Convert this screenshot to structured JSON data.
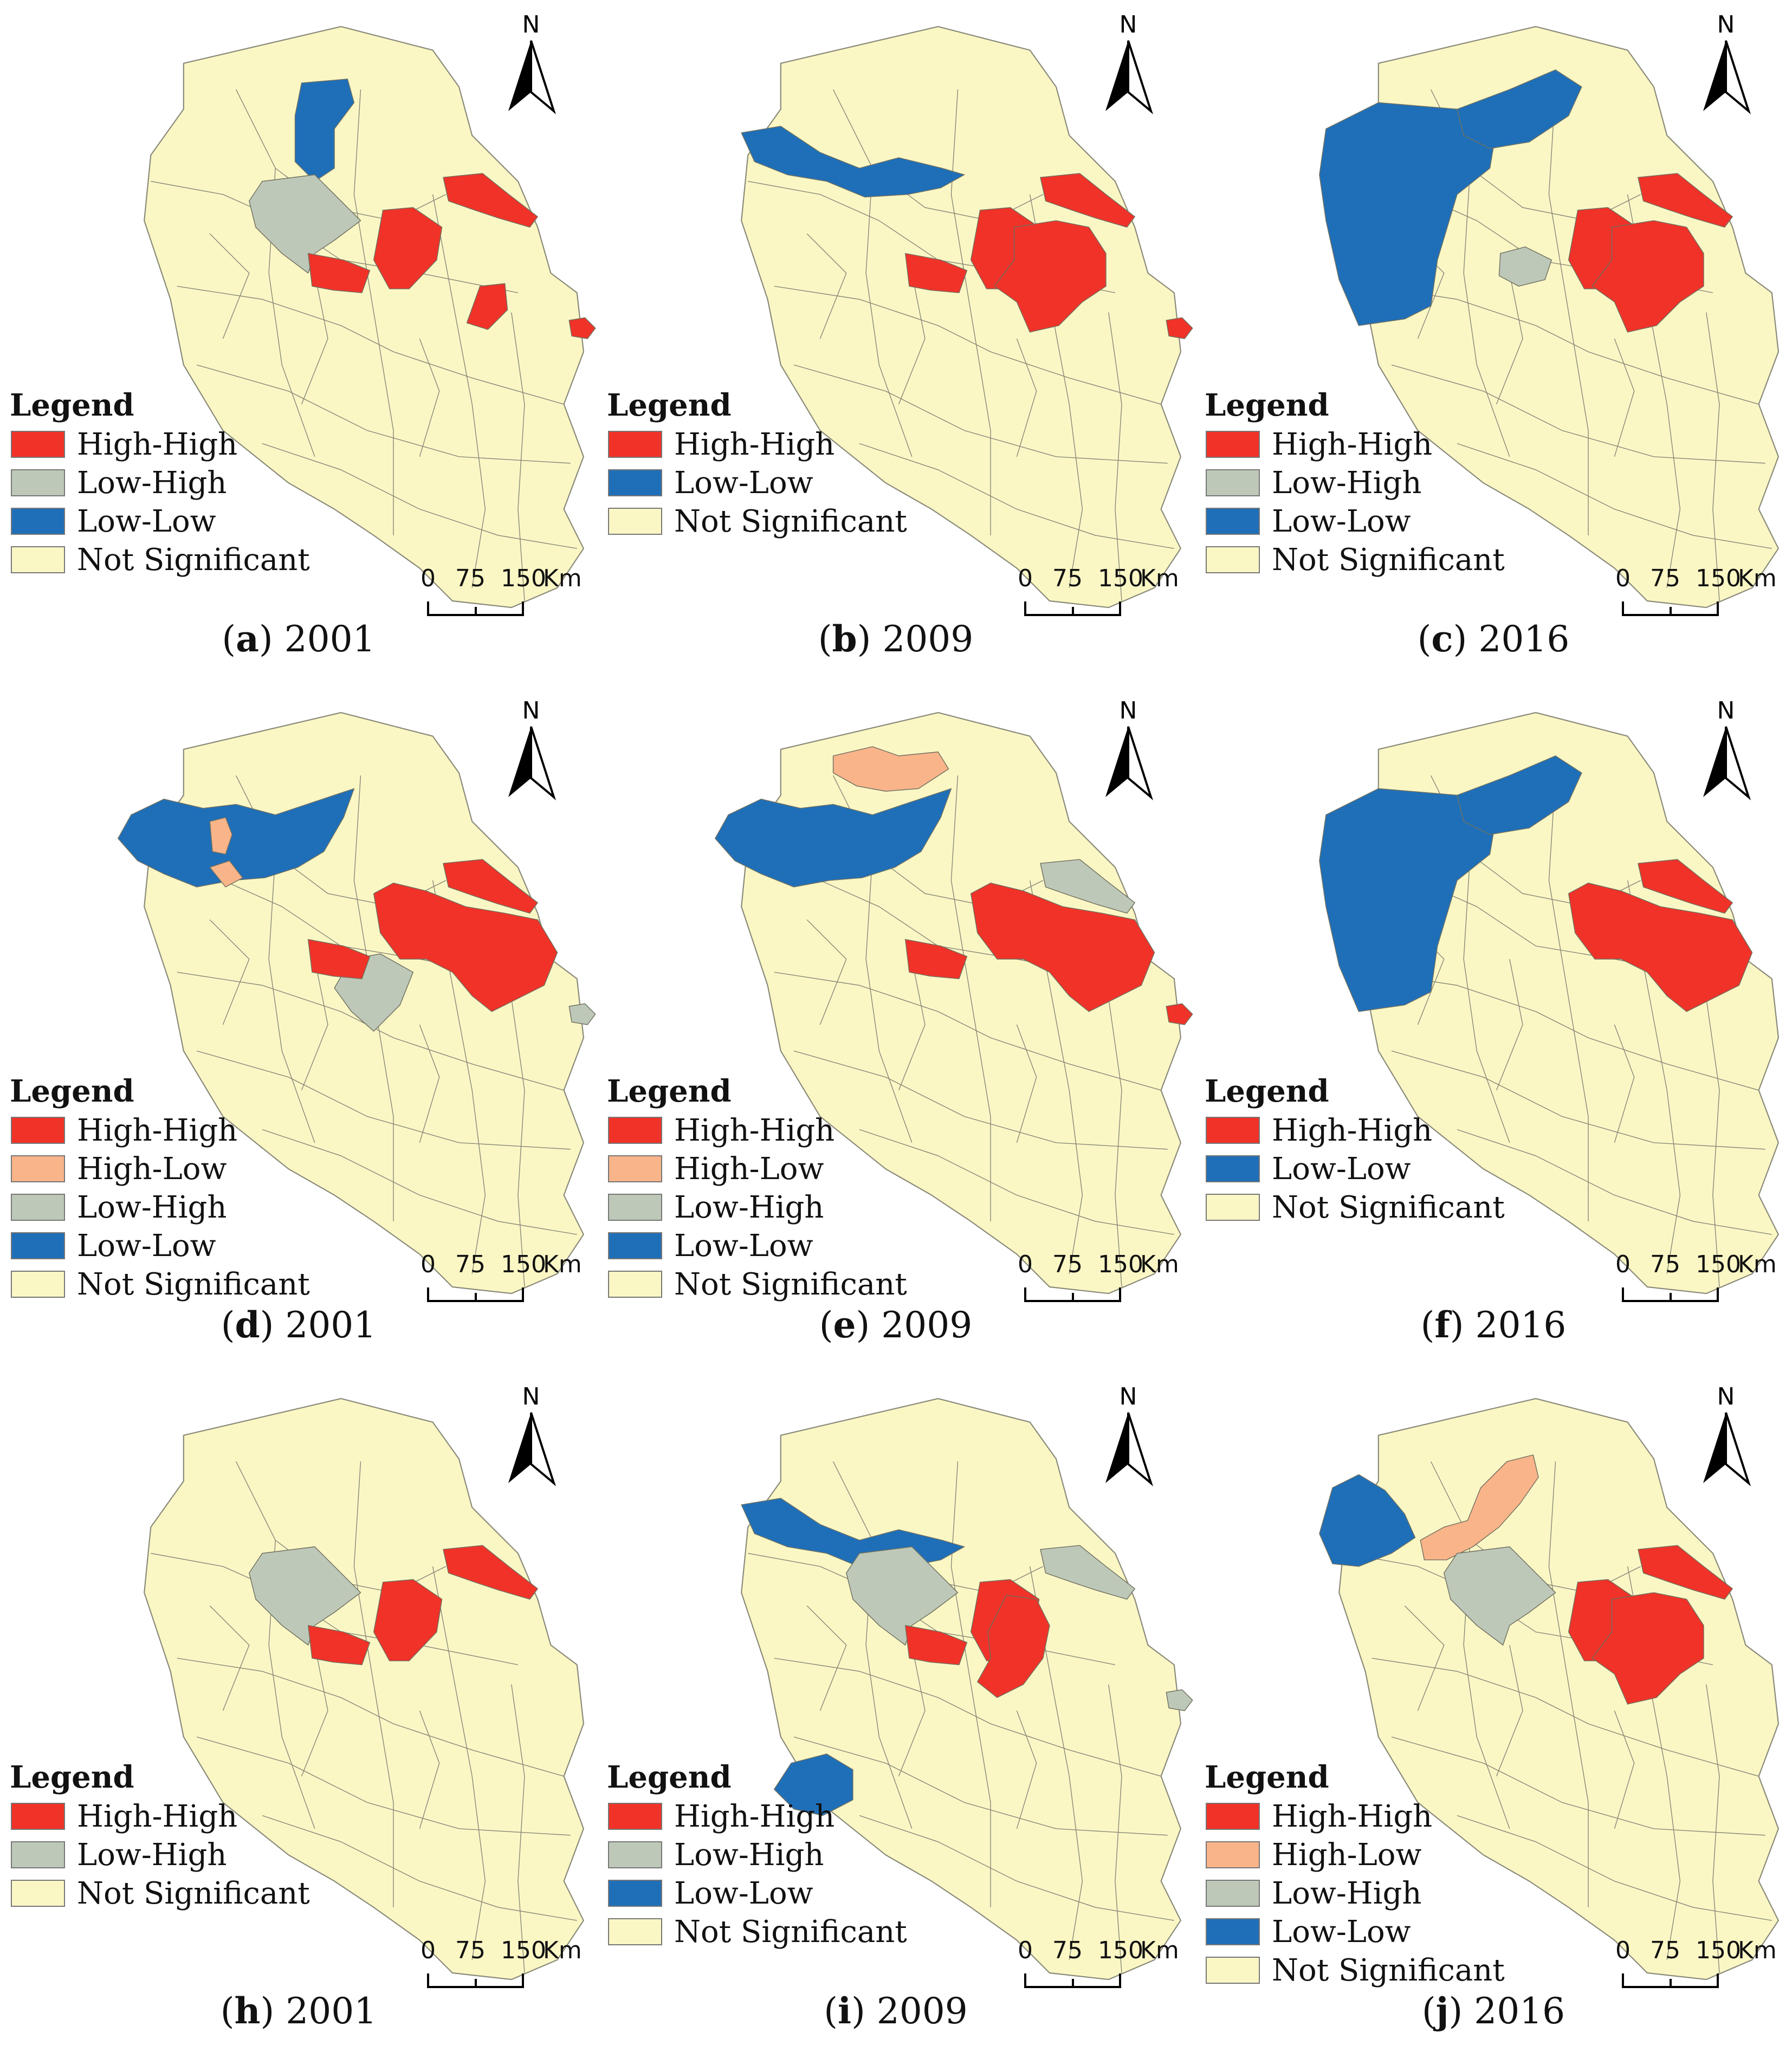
{
  "colors": {
    "High-High": "#f03228",
    "High-Low": "#f9b48a",
    "Low-High": "#bdc8b8",
    "Low-Low": "#1f6fb8",
    "Not Significant": "#fbf7c5",
    "border": "#8a8a7a"
  },
  "legend_title": "Legend",
  "north_label": "N",
  "scale": {
    "ticks": [
      "0",
      "75",
      "150"
    ],
    "unit": "Km"
  },
  "panels": [
    {
      "letter": "a",
      "year": "2001",
      "legend": [
        "High-High",
        "Low-High",
        "Low-Low",
        "Not Significant"
      ],
      "regions": [
        {
          "cls": "Low-Low",
          "shape": "n_strip"
        },
        {
          "cls": "Low-High",
          "shape": "c_west"
        },
        {
          "cls": "High-High",
          "shape": "c_mid"
        },
        {
          "cls": "High-High",
          "shape": "c_center"
        },
        {
          "cls": "High-High",
          "shape": "ne_coast"
        },
        {
          "cls": "High-High",
          "shape": "se_small"
        },
        {
          "cls": "High-High",
          "shape": "island"
        }
      ]
    },
    {
      "letter": "b",
      "year": "2009",
      "legend": [
        "High-High",
        "Low-Low",
        "Not Significant"
      ],
      "regions": [
        {
          "cls": "Low-Low",
          "shape": "nw_band"
        },
        {
          "cls": "High-High",
          "shape": "c_mid"
        },
        {
          "cls": "High-High",
          "shape": "c_center"
        },
        {
          "cls": "High-High",
          "shape": "ne_coast"
        },
        {
          "cls": "High-High",
          "shape": "e_big"
        },
        {
          "cls": "High-High",
          "shape": "island"
        }
      ]
    },
    {
      "letter": "c",
      "year": "2016",
      "legend": [
        "High-High",
        "Low-High",
        "Low-Low",
        "Not Significant"
      ],
      "regions": [
        {
          "cls": "Low-Low",
          "shape": "west_big"
        },
        {
          "cls": "Low-Low",
          "shape": "n_arm"
        },
        {
          "cls": "Low-High",
          "shape": "c_small"
        },
        {
          "cls": "High-High",
          "shape": "c_center"
        },
        {
          "cls": "High-High",
          "shape": "ne_coast"
        },
        {
          "cls": "High-High",
          "shape": "e_big"
        }
      ]
    },
    {
      "letter": "d",
      "year": "2001",
      "legend": [
        "High-High",
        "High-Low",
        "Low-High",
        "Low-Low",
        "Not Significant"
      ],
      "regions": [
        {
          "cls": "Low-Low",
          "shape": "nw_large"
        },
        {
          "cls": "High-Low",
          "shape": "hl_small1"
        },
        {
          "cls": "High-Low",
          "shape": "hl_small2"
        },
        {
          "cls": "Low-High",
          "shape": "c_south"
        },
        {
          "cls": "High-High",
          "shape": "c_mid"
        },
        {
          "cls": "High-High",
          "shape": "ne_coast"
        },
        {
          "cls": "High-High",
          "shape": "e_large"
        },
        {
          "cls": "Low-High",
          "shape": "island"
        }
      ]
    },
    {
      "letter": "e",
      "year": "2009",
      "legend": [
        "High-High",
        "High-Low",
        "Low-High",
        "Low-Low",
        "Not Significant"
      ],
      "regions": [
        {
          "cls": "Low-Low",
          "shape": "nw_large"
        },
        {
          "cls": "High-Low",
          "shape": "n_top"
        },
        {
          "cls": "Low-High",
          "shape": "ne_coast"
        },
        {
          "cls": "High-High",
          "shape": "c_mid"
        },
        {
          "cls": "High-High",
          "shape": "e_large"
        },
        {
          "cls": "High-High",
          "shape": "island"
        }
      ]
    },
    {
      "letter": "f",
      "year": "2016",
      "legend": [
        "High-High",
        "Low-Low",
        "Not Significant"
      ],
      "regions": [
        {
          "cls": "Low-Low",
          "shape": "west_big"
        },
        {
          "cls": "Low-Low",
          "shape": "n_arm"
        },
        {
          "cls": "High-High",
          "shape": "ne_coast"
        },
        {
          "cls": "High-High",
          "shape": "e_large"
        }
      ]
    },
    {
      "letter": "h",
      "year": "2001",
      "legend": [
        "High-High",
        "Low-High",
        "Not Significant"
      ],
      "regions": [
        {
          "cls": "Low-High",
          "shape": "c_west"
        },
        {
          "cls": "High-High",
          "shape": "c_mid"
        },
        {
          "cls": "High-High",
          "shape": "c_center"
        },
        {
          "cls": "High-High",
          "shape": "ne_coast"
        }
      ]
    },
    {
      "letter": "i",
      "year": "2009",
      "legend": [
        "High-High",
        "Low-High",
        "Low-Low",
        "Not Significant"
      ],
      "regions": [
        {
          "cls": "Low-Low",
          "shape": "nw_band"
        },
        {
          "cls": "Low-High",
          "shape": "c_west"
        },
        {
          "cls": "Low-High",
          "shape": "ne_coast"
        },
        {
          "cls": "High-High",
          "shape": "c_mid"
        },
        {
          "cls": "High-High",
          "shape": "c_center"
        },
        {
          "cls": "High-High",
          "shape": "e_strip"
        },
        {
          "cls": "Low-Low",
          "shape": "s_blob"
        },
        {
          "cls": "Low-High",
          "shape": "island"
        }
      ]
    },
    {
      "letter": "j",
      "year": "2016",
      "legend": [
        "High-High",
        "High-Low",
        "Low-High",
        "Low-Low",
        "Not Significant"
      ],
      "regions": [
        {
          "cls": "Low-Low",
          "shape": "w_edge"
        },
        {
          "cls": "High-Low",
          "shape": "n_diag"
        },
        {
          "cls": "Low-High",
          "shape": "c_west"
        },
        {
          "cls": "High-High",
          "shape": "c_center"
        },
        {
          "cls": "High-High",
          "shape": "ne_coast"
        },
        {
          "cls": "High-High",
          "shape": "e_big"
        }
      ]
    }
  ]
}
